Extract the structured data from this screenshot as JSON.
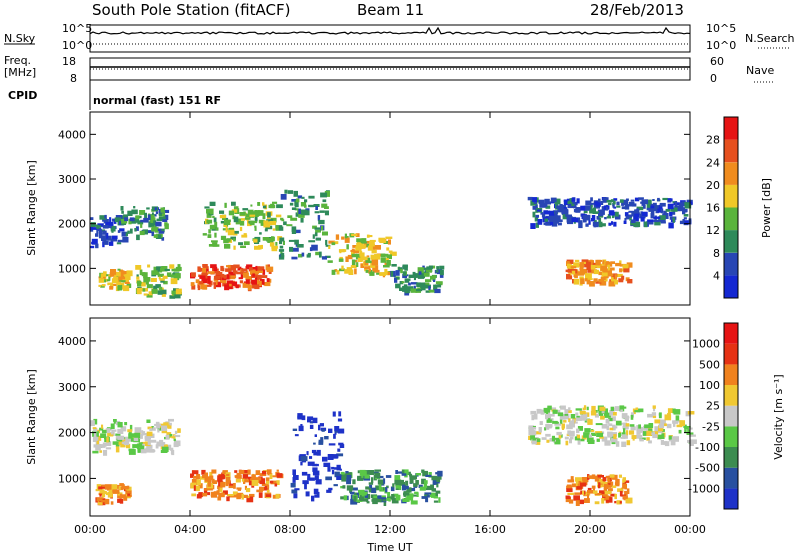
{
  "header": {
    "station": "South Pole Station (fitACF)",
    "beam": "Beam 11",
    "date": "28/Feb/2013"
  },
  "nsky_panel": {
    "left_label": "N.Sky",
    "right_label": "N.Search",
    "ticks_left": [
      "10^5",
      "10^0"
    ],
    "ticks_right": [
      "10^5",
      "10^0"
    ]
  },
  "freq_panel": {
    "left_label_1": "Freq.",
    "left_label_2": "[MHz]",
    "right_label": "Nave",
    "ticks_left": [
      "18",
      "8"
    ],
    "ticks_right": [
      "60",
      "0"
    ]
  },
  "cpid": {
    "label": "CPID",
    "text": "normal (fast) 151 RF"
  },
  "x_axis": {
    "label": "Time UT",
    "ticks": [
      "00:00",
      "04:00",
      "08:00",
      "12:00",
      "16:00",
      "20:00",
      "00:00"
    ]
  },
  "chart_data": [
    {
      "type": "heatmap",
      "title": "",
      "xlabel": "",
      "ylabel": "Slant Range [km]",
      "ylim": [
        180,
        4500
      ],
      "yticks": [
        "1000",
        "2000",
        "3000",
        "4000"
      ],
      "xlim_hours": [
        0,
        24
      ],
      "colorbar": {
        "label": "Power [dB]",
        "ticks": [
          "4",
          "8",
          "12",
          "16",
          "20",
          "24",
          "28"
        ],
        "colors": [
          "#1428d2",
          "#2846b4",
          "#2e8a5a",
          "#5ab43c",
          "#f0c828",
          "#f08c1e",
          "#e6501e",
          "#e61414"
        ]
      },
      "regions": [
        {
          "t": [
            0.0,
            1.2
          ],
          "r": [
            1500,
            2200
          ],
          "value_class": 1
        },
        {
          "t": [
            1.2,
            3.0
          ],
          "r": [
            1700,
            2400
          ],
          "value_class": 2
        },
        {
          "t": [
            0.3,
            1.5
          ],
          "r": [
            600,
            1000
          ],
          "value_class": 4
        },
        {
          "t": [
            1.8,
            3.5
          ],
          "r": [
            400,
            1100
          ],
          "value_class": 3
        },
        {
          "t": [
            4.0,
            7.2
          ],
          "r": [
            600,
            1100
          ],
          "value_class": 6
        },
        {
          "t": [
            4.5,
            7.5
          ],
          "r": [
            1500,
            2500
          ],
          "value_class": 3
        },
        {
          "t": [
            7.5,
            9.5
          ],
          "r": [
            1200,
            2800
          ],
          "value_class": 2
        },
        {
          "t": [
            9.5,
            12.0
          ],
          "r": [
            900,
            1800
          ],
          "value_class": 4
        },
        {
          "t": [
            12.0,
            14.0
          ],
          "r": [
            500,
            1100
          ],
          "value_class": 2
        },
        {
          "t": [
            19.0,
            21.5
          ],
          "r": [
            700,
            1200
          ],
          "value_class": 5
        },
        {
          "t": [
            17.5,
            24.0
          ],
          "r": [
            2000,
            2600
          ],
          "value_class": 1
        }
      ]
    },
    {
      "type": "heatmap",
      "title": "",
      "xlabel": "Time UT",
      "ylabel": "Slant Range [km]",
      "ylim": [
        180,
        4500
      ],
      "yticks": [
        "1000",
        "2000",
        "3000",
        "4000"
      ],
      "xlim_hours": [
        0,
        24
      ],
      "colorbar": {
        "label": "Velocity [m s⁻¹]",
        "ticks": [
          "1000",
          "500",
          "100",
          "25",
          "-25",
          "-100",
          "-500",
          "-1000"
        ],
        "colors": [
          "#1e32c8",
          "#2850a0",
          "#3c8c50",
          "#5ac846",
          "#c8c8c8",
          "#f0c832",
          "#f0821e",
          "#e63214",
          "#e61414"
        ]
      },
      "regions": [
        {
          "t": [
            0.0,
            3.5
          ],
          "r": [
            1600,
            2300
          ],
          "value_class": 4
        },
        {
          "t": [
            4.0,
            7.5
          ],
          "r": [
            600,
            1200
          ],
          "value_class": 6
        },
        {
          "t": [
            0.2,
            1.5
          ],
          "r": [
            500,
            900
          ],
          "value_class": 6
        },
        {
          "t": [
            8.0,
            10.0
          ],
          "r": [
            600,
            2500
          ],
          "value_class": 0
        },
        {
          "t": [
            10.0,
            14.0
          ],
          "r": [
            500,
            1200
          ],
          "value_class": 2
        },
        {
          "t": [
            19.0,
            21.5
          ],
          "r": [
            500,
            1100
          ],
          "value_class": 6
        },
        {
          "t": [
            17.5,
            24.0
          ],
          "r": [
            1800,
            2600
          ],
          "value_class": 4
        }
      ]
    }
  ]
}
